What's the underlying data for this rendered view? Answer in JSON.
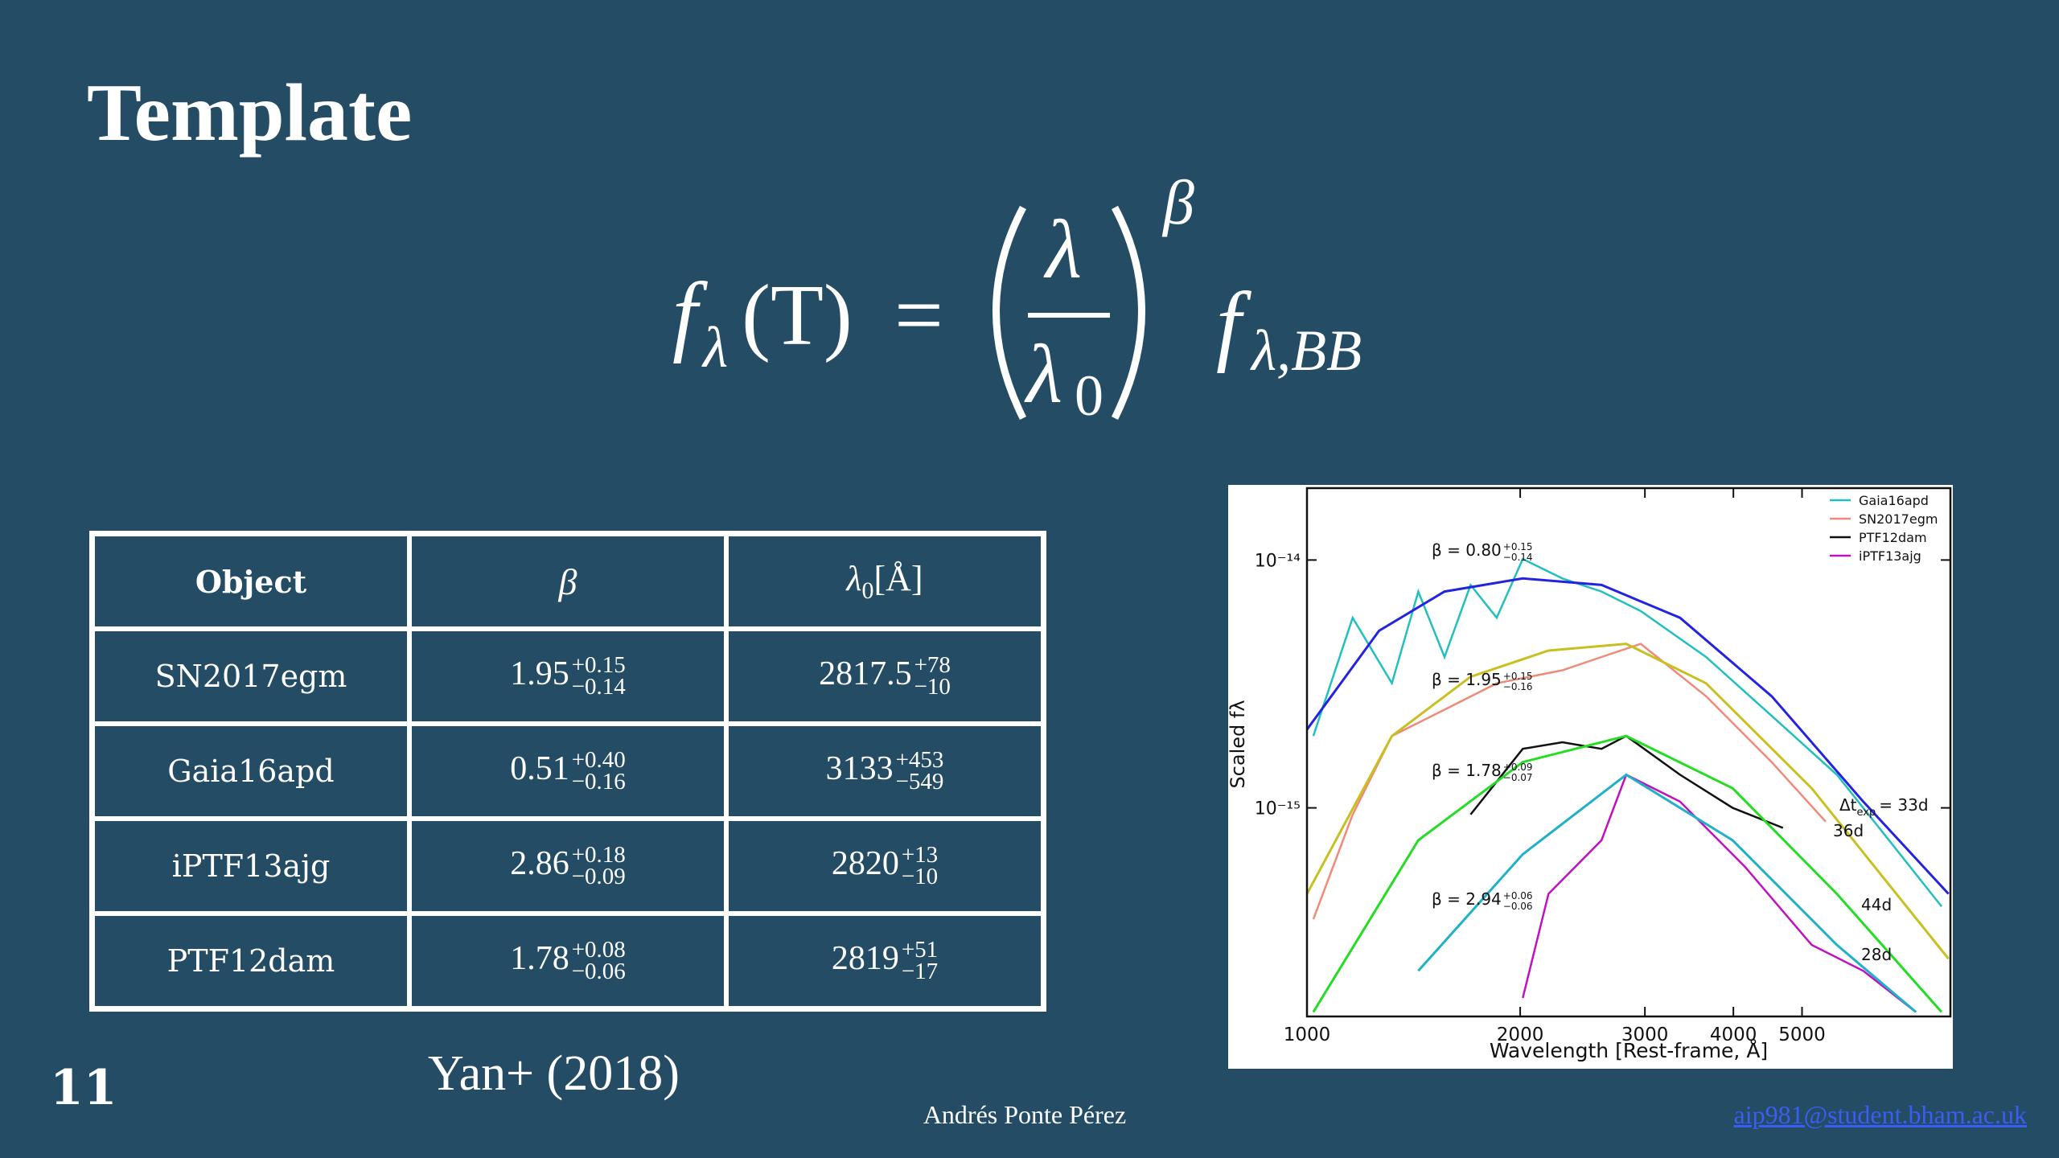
{
  "slide": {
    "title": "Template",
    "number": "11",
    "citation": "Yan+ (2018)",
    "author": "Andrés Ponte Pérez",
    "email": "aip981@student.bham.ac.uk"
  },
  "formula": {
    "lhs": "f",
    "lhs_sub": "λ",
    "lhs_arg": "(T)",
    "equals": "=",
    "numerator": "λ",
    "denominator": "λ",
    "denominator_sub": "0",
    "exponent": "β",
    "rhs": "f",
    "rhs_sub": "λ,BB"
  },
  "table": {
    "header": {
      "object": "Object",
      "beta": "β",
      "lambda0": {
        "symbol": "λ",
        "sub": "0",
        "unit": "[Å]"
      }
    },
    "rows": [
      {
        "object": "SN2017egm",
        "beta": {
          "value": "1.95",
          "plus": "+0.15",
          "minus": "−0.14"
        },
        "lambda0": {
          "value": "2817.5",
          "plus": "+78",
          "minus": "−10"
        }
      },
      {
        "object": "Gaia16apd",
        "beta": {
          "value": "0.51",
          "plus": "+0.40",
          "minus": "−0.16"
        },
        "lambda0": {
          "value": "3133",
          "plus": "+453",
          "minus": "−549"
        }
      },
      {
        "object": "iPTF13ajg",
        "beta": {
          "value": "2.86",
          "plus": "+0.18",
          "minus": "−0.09"
        },
        "lambda0": {
          "value": "2820",
          "plus": "+13",
          "minus": "−10"
        }
      },
      {
        "object": "PTF12dam",
        "beta": {
          "value": "1.78",
          "plus": "+0.08",
          "minus": "−0.06"
        },
        "lambda0": {
          "value": "2819",
          "plus": "+51",
          "minus": "−17"
        }
      }
    ]
  },
  "chart_data": {
    "type": "line",
    "xlabel": "Wavelength [Rest-frame, Å]",
    "ylabel": "Scaled fλ",
    "xscale": "log",
    "yscale": "log",
    "xlim": [
      1000,
      8100
    ],
    "ylim": [
      1.44e-16,
      1.95e-14
    ],
    "xticks": [
      1000,
      2000,
      3000,
      4000,
      5000
    ],
    "yticks": [
      {
        "value": 1e-14,
        "label": "10⁻¹⁴"
      },
      {
        "value": 1e-15,
        "label": "10⁻¹⁵"
      }
    ],
    "legend": "upper right",
    "series": [
      {
        "name": "Gaia16apd",
        "color": "#22bfbf",
        "x": [
          1021,
          1160,
          1318,
          1436,
          1564,
          1702,
          1853,
          2017,
          2294,
          2605,
          2960,
          3660,
          4530,
          5600,
          6640,
          7870
        ],
        "values": [
          1.95e-15,
          5.85e-15,
          3.18e-15,
          7.46e-15,
          4.06e-15,
          7.93e-15,
          5.85e-15,
          1.01e-14,
          8.43e-15,
          7.46e-15,
          6.22e-15,
          4.06e-15,
          2.35e-15,
          1.36e-15,
          7.38e-16,
          4e-16
        ]
      },
      {
        "name": "SN2017egm",
        "color": "#f08a78",
        "x": [
          1021,
          1160,
          1318,
          1564,
          1853,
          2294,
          2605,
          2960,
          3660,
          4530,
          5400
        ],
        "values": [
          3.55e-16,
          9.4e-16,
          1.95e-15,
          2.49e-15,
          3.18e-15,
          3.59e-15,
          4.06e-15,
          4.59e-15,
          2.82e-15,
          1.53e-15,
          8.8e-16
        ]
      },
      {
        "name": "PTF12dam",
        "color": "#111111",
        "x": [
          1702,
          2017,
          2294,
          2605,
          2823,
          3363,
          3990,
          4700
        ],
        "values": [
          9.4e-16,
          1.73e-15,
          1.84e-15,
          1.73e-15,
          1.95e-15,
          1.36e-15,
          1e-15,
          8.3e-16
        ]
      },
      {
        "name": "iPTF13ajg",
        "color": "#c010c0",
        "x": [
          2017,
          2193,
          2605,
          2823,
          3363,
          4150,
          5160,
          6100,
          7240
        ],
        "values": [
          1.71e-16,
          4.5e-16,
          7.4e-16,
          1.36e-15,
          1.06e-15,
          5.8e-16,
          2.8e-16,
          2.2e-16,
          1.5e-16
        ]
      },
      {
        "color": "#2424e0",
        "x": [
          1000,
          1264,
          1564,
          2017,
          2605,
          3363,
          4530,
          6100,
          8050
        ],
        "values": [
          2.07e-15,
          5.18e-15,
          7.46e-15,
          8.43e-15,
          7.93e-15,
          5.85e-15,
          2.82e-15,
          1.06e-15,
          4.5e-16
        ]
      },
      {
        "color": "#c8c020",
        "x": [
          1000,
          1318,
          1702,
          2193,
          2823,
          3660,
          5160,
          8050
        ],
        "values": [
          4.5e-16,
          1.95e-15,
          3.38e-15,
          4.31e-15,
          4.59e-15,
          3.18e-15,
          1.2e-15,
          2.46e-16
        ]
      },
      {
        "color": "#22dd22",
        "x": [
          1021,
          1436,
          2017,
          2823,
          3990,
          5600,
          7870
        ],
        "values": [
          1.5e-16,
          7.4e-16,
          1.53e-15,
          1.95e-15,
          1.2e-15,
          4.5e-16,
          1.5e-16
        ]
      },
      {
        "color": "#20b0c8",
        "x": [
          1436,
          2017,
          2823,
          3990,
          5600,
          7240
        ],
        "values": [
          2.2e-16,
          6.5e-16,
          1.36e-15,
          7.4e-16,
          2.8e-16,
          1.5e-16
        ]
      }
    ],
    "annotations": [
      {
        "text": "β = 0.80",
        "plus": "+0.15",
        "minus": "−0.14"
      },
      {
        "text": "β = 1.95",
        "plus": "+0.15",
        "minus": "−0.16"
      },
      {
        "text": "β = 1.78",
        "plus": "+0.09",
        "minus": "−0.07"
      },
      {
        "text": "β = 2.94",
        "plus": "+0.06",
        "minus": "−0.06"
      },
      {
        "text": "Δt",
        "sub": "exp",
        "rest": "= 33d"
      },
      {
        "text": "36d"
      },
      {
        "text": "44d"
      },
      {
        "text": "28d"
      }
    ]
  }
}
